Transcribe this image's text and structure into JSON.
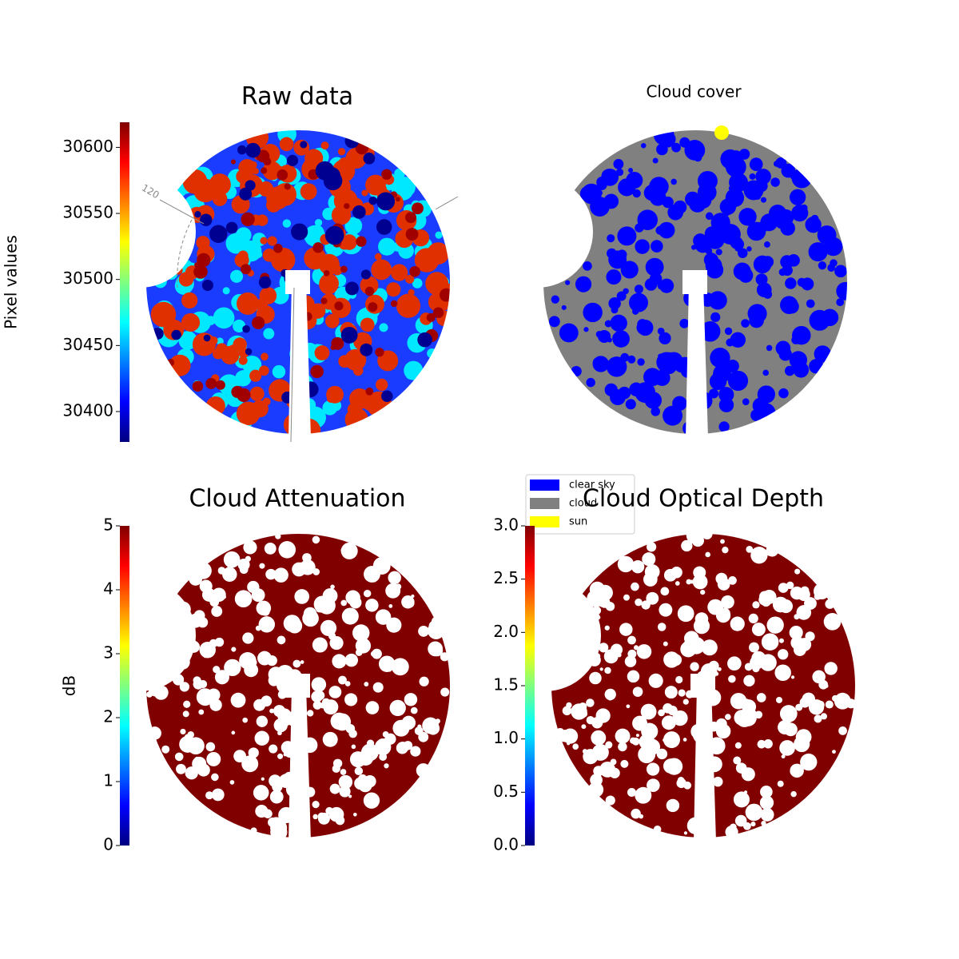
{
  "chart_data": [
    {
      "type": "image",
      "title": "Raw data",
      "colorbar_label": "Pixel values",
      "ylim": [
        30377,
        30619
      ],
      "yticks": [
        30400,
        30450,
        30500,
        30550,
        30600
      ],
      "annotations": [
        "120"
      ]
    },
    {
      "type": "image",
      "title": "Cloud cover",
      "legend": [
        {
          "name": "clear sky",
          "color": "#0000ff"
        },
        {
          "name": "cloud",
          "color": "#808080"
        },
        {
          "name": "sun",
          "color": "#ffff00"
        }
      ]
    },
    {
      "type": "image",
      "title": "Cloud Attenuation",
      "colorbar_label": "dB",
      "ylim": [
        0,
        5
      ],
      "yticks": [
        0,
        1,
        2,
        3,
        4,
        5
      ]
    },
    {
      "type": "image",
      "title": "Cloud Optical Depth",
      "ylim": [
        0,
        3
      ],
      "yticks": [
        {
          "value": 0,
          "label": "0.0"
        },
        0.5,
        {
          "value": 1,
          "label": "1.0"
        },
        1.5,
        {
          "value": 2,
          "label": "2.0"
        },
        2.5,
        {
          "value": 3,
          "label": "3.0"
        }
      ]
    }
  ]
}
